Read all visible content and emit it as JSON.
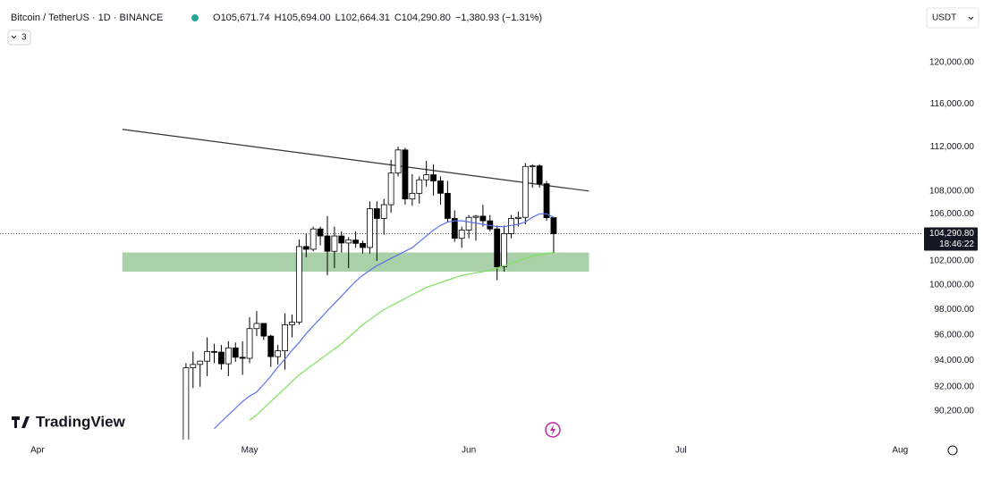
{
  "header": {
    "title": "Bitcoin / TetherUS · 1D · BINANCE",
    "ohlc": [
      {
        "key": "O",
        "value": "105,671.74"
      },
      {
        "key": "H",
        "value": "105,694.00"
      },
      {
        "key": "L",
        "value": "102,664.31"
      },
      {
        "key": "C",
        "value": "104,290.80"
      }
    ],
    "change": "−1,380.93 (−1.31%)",
    "indicators": "3",
    "currency": "USDT",
    "logo": "TradingView"
  },
  "chart_data": {
    "type": "candlestick",
    "log_scale": true,
    "grid": false,
    "up_color": "#ffffff",
    "down_color": "#000000",
    "x": [
      21,
      22,
      23,
      24,
      25,
      26,
      27,
      28,
      29,
      30,
      31,
      32,
      33,
      34,
      35,
      36,
      37,
      38,
      39,
      40,
      41,
      42,
      43,
      44,
      45,
      46,
      47,
      48,
      49,
      50,
      51,
      52,
      53,
      54,
      55,
      56,
      57,
      58,
      59,
      60,
      61,
      62,
      63,
      64,
      65,
      66,
      67,
      68,
      69,
      70,
      71,
      72,
      73
    ],
    "open": [
      87500,
      93440,
      93700,
      93950,
      94700,
      94650,
      93750,
      94980,
      94250,
      94170,
      96490,
      96900,
      95900,
      94300,
      94750,
      96800,
      97000,
      103200,
      102970,
      104700,
      104100,
      102800,
      104100,
      103500,
      103750,
      103470,
      103120,
      106450,
      105600,
      106800,
      109600,
      111700,
      107300,
      107800,
      109000,
      109450,
      108900,
      107800,
      105600,
      103900,
      104600,
      105700,
      105800,
      105400,
      104700,
      101500,
      104300,
      105600,
      105700,
      110200,
      110250,
      108650,
      105671.74
    ],
    "high": [
      93800,
      94700,
      94000,
      95800,
      95300,
      95200,
      95500,
      95400,
      95500,
      97400,
      97900,
      96900,
      96000,
      95200,
      97700,
      97600,
      103800,
      104300,
      104900,
      104900,
      105800,
      104900,
      104500,
      104000,
      104500,
      103700,
      107100,
      107100,
      107300,
      110800,
      112000,
      111900,
      109500,
      109300,
      110700,
      110400,
      109300,
      108900,
      106300,
      104900,
      105900,
      105900,
      106800,
      105900,
      105000,
      105000,
      105900,
      106200,
      110500,
      110400,
      110400,
      108900,
      105694
    ],
    "low": [
      87000,
      91900,
      92000,
      92800,
      93800,
      93300,
      92800,
      93900,
      92900,
      93800,
      95900,
      95600,
      93500,
      93700,
      93300,
      95800,
      96800,
      102300,
      102800,
      103300,
      100800,
      101400,
      102700,
      101400,
      103100,
      102600,
      102600,
      102000,
      104200,
      106100,
      109300,
      106800,
      106700,
      106900,
      108400,
      107600,
      106800,
      105300,
      103600,
      103100,
      103900,
      103700,
      104900,
      104500,
      100400,
      101100,
      103900,
      104900,
      105100,
      108300,
      108300,
      105400,
      102664.31
    ],
    "close": [
      93440,
      93700,
      93950,
      94700,
      94650,
      93750,
      94980,
      94250,
      94170,
      96490,
      96900,
      95900,
      94300,
      94750,
      96800,
      97000,
      103200,
      102970,
      104700,
      104100,
      102800,
      104100,
      103500,
      103750,
      103470,
      103120,
      106450,
      105600,
      106800,
      109600,
      111700,
      107300,
      107800,
      109000,
      109450,
      108900,
      107800,
      105600,
      103900,
      104600,
      105700,
      105800,
      105400,
      104700,
      101500,
      104300,
      105600,
      105700,
      110200,
      110250,
      108650,
      105670,
      104290.8
    ],
    "series": [
      {
        "type": "line",
        "color": "#5b73e8",
        "values": [
          null,
          null,
          null,
          null,
          88900,
          89400,
          89900,
          90400,
          90900,
          91300,
          91600,
          92200,
          92800,
          93500,
          94100,
          94800,
          95400,
          96100,
          96700,
          97300,
          97900,
          98500,
          99100,
          99700,
          100300,
          100800,
          101200,
          101600,
          101900,
          102200,
          102500,
          102800,
          103100,
          103600,
          104100,
          104600,
          105000,
          105300,
          105400,
          105400,
          105300,
          105200,
          105100,
          105000,
          104900,
          104900,
          105000,
          105100,
          105300,
          105700,
          106000,
          106000,
          105700
        ]
      },
      {
        "type": "line",
        "color": "#7be35c",
        "values": [
          null,
          null,
          null,
          null,
          null,
          null,
          null,
          null,
          null,
          89500,
          89900,
          90400,
          90900,
          91400,
          91900,
          92400,
          92900,
          93300,
          93700,
          94100,
          94500,
          94900,
          95300,
          95800,
          96300,
          96800,
          97200,
          97600,
          98000,
          98300,
          98600,
          98900,
          99200,
          99500,
          99800,
          100000,
          100200,
          100400,
          100600,
          100800,
          100900,
          101000,
          101100,
          101200,
          101400,
          101600,
          101800,
          102000,
          102200,
          102400,
          102500,
          102600,
          102700
        ]
      }
    ],
    "trendline": {
      "x": [
        12,
        78
      ],
      "y": [
        113600,
        108000
      ],
      "color": "#333333"
    },
    "zone": {
      "x": [
        12,
        78
      ],
      "y": [
        101100,
        102700
      ],
      "color": "#a9d0a8"
    },
    "last_price": {
      "value": 104290.8,
      "label": "104,290.80",
      "countdown": "18:46:22"
    },
    "xlim": [
      -5.3,
      125
    ],
    "ylim": [
      88100,
      126300
    ],
    "xticks": [
      {
        "value": 0,
        "label": "Apr"
      },
      {
        "value": 30,
        "label": "May"
      },
      {
        "value": 61,
        "label": "Jun"
      },
      {
        "value": 91,
        "label": "Jul"
      },
      {
        "value": 122,
        "label": "Aug"
      }
    ],
    "yticks": [
      {
        "value": 120000,
        "label": "120,000.00"
      },
      {
        "value": 116000,
        "label": "116,000.00"
      },
      {
        "value": 112000,
        "label": "112,000.00"
      },
      {
        "value": 108000,
        "label": "108,000.00"
      },
      {
        "value": 106000,
        "label": "106,000.00"
      },
      {
        "value": 102000,
        "label": "102,000.00"
      },
      {
        "value": 100000,
        "label": "100,000.00"
      },
      {
        "value": 98000,
        "label": "98,000.00"
      },
      {
        "value": 96000,
        "label": "96,000.00"
      },
      {
        "value": 94000,
        "label": "94,000.00"
      },
      {
        "value": 92000,
        "label": "92,000.00"
      },
      {
        "value": 90200,
        "label": "90,200.00"
      }
    ]
  }
}
